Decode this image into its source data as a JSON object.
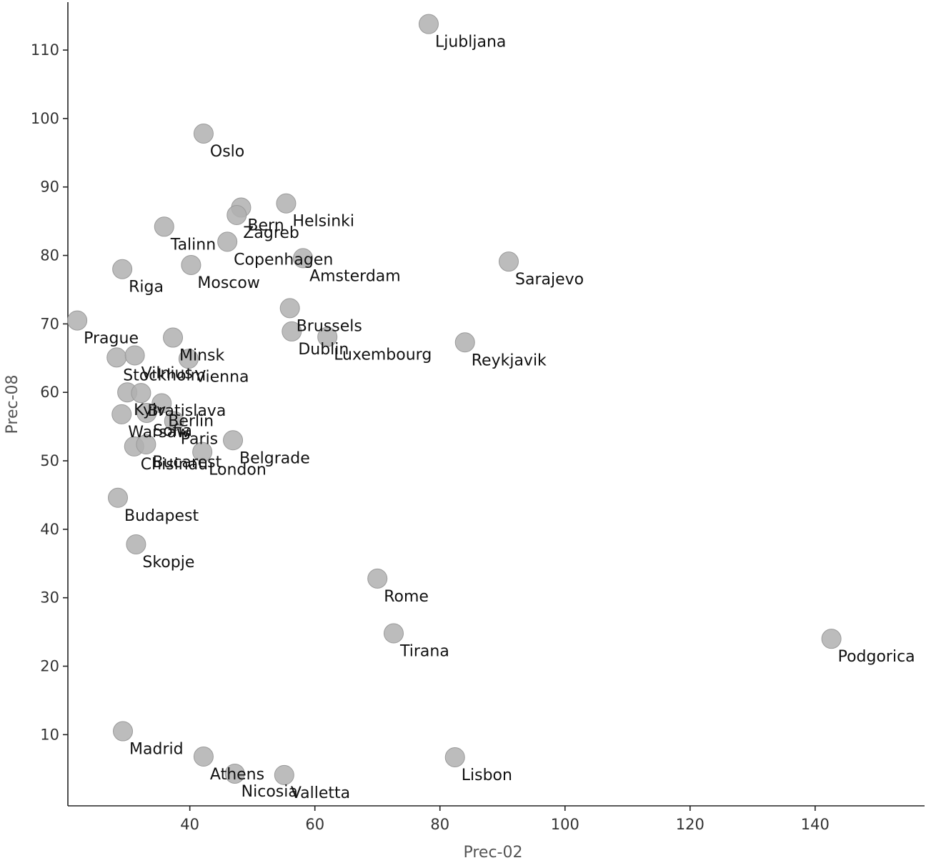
{
  "chart_data": {
    "type": "scatter",
    "xlabel": "Prec-02",
    "ylabel": "Prec-08",
    "xlim": [
      20.5,
      157.5
    ],
    "ylim": [
      -0.4,
      117
    ],
    "xticks": [
      40,
      60,
      80,
      100,
      120,
      140
    ],
    "yticks": [
      10,
      20,
      30,
      40,
      50,
      60,
      70,
      80,
      90,
      100,
      110
    ],
    "grid": false,
    "legend": "none",
    "colors": {
      "point": "#b0b0b0",
      "axis": "#222222",
      "text": "#111111"
    },
    "points": [
      {
        "label": "Ljubljana",
        "x": 78.2,
        "y": 113.8
      },
      {
        "label": "Oslo",
        "x": 42.2,
        "y": 97.8
      },
      {
        "label": "Bern",
        "x": 48.2,
        "y": 87.0
      },
      {
        "label": "Helsinki",
        "x": 55.4,
        "y": 87.6
      },
      {
        "label": "Zagreb",
        "x": 47.5,
        "y": 85.9
      },
      {
        "label": "Talinn",
        "x": 35.9,
        "y": 84.2
      },
      {
        "label": "Copenhagen",
        "x": 46.0,
        "y": 82.0
      },
      {
        "label": "Amsterdam",
        "x": 58.1,
        "y": 79.6
      },
      {
        "label": "Sarajevo",
        "x": 91.0,
        "y": 79.1
      },
      {
        "label": "Riga",
        "x": 29.2,
        "y": 78.0
      },
      {
        "label": "Moscow",
        "x": 40.2,
        "y": 78.6
      },
      {
        "label": "Brussels",
        "x": 56.0,
        "y": 72.3
      },
      {
        "label": "Prague",
        "x": 22.0,
        "y": 70.5
      },
      {
        "label": "Dublin",
        "x": 56.3,
        "y": 68.9
      },
      {
        "label": "Luxembourg",
        "x": 62.0,
        "y": 68.1
      },
      {
        "label": "Reykjavik",
        "x": 84.0,
        "y": 67.3
      },
      {
        "label": "Minsk",
        "x": 37.3,
        "y": 68.0
      },
      {
        "label": "Stockholm",
        "x": 28.3,
        "y": 65.1
      },
      {
        "label": "Vilnius",
        "x": 31.2,
        "y": 65.4
      },
      {
        "label": "Vienna",
        "x": 39.8,
        "y": 64.9
      },
      {
        "label": "Kyiv",
        "x": 30.0,
        "y": 60.0
      },
      {
        "label": "Bratislava",
        "x": 32.2,
        "y": 59.9
      },
      {
        "label": "Berlin",
        "x": 35.5,
        "y": 58.4
      },
      {
        "label": "Warsaw",
        "x": 29.1,
        "y": 56.8
      },
      {
        "label": "Sofia",
        "x": 33.1,
        "y": 57.0
      },
      {
        "label": "Paris",
        "x": 37.5,
        "y": 55.8
      },
      {
        "label": "Belgrade",
        "x": 46.9,
        "y": 53.0
      },
      {
        "label": "Chisinau",
        "x": 31.1,
        "y": 52.1
      },
      {
        "label": "Bucarest",
        "x": 33.0,
        "y": 52.4
      },
      {
        "label": "London",
        "x": 42.0,
        "y": 51.3
      },
      {
        "label": "Budapest",
        "x": 28.5,
        "y": 44.6
      },
      {
        "label": "Skopje",
        "x": 31.4,
        "y": 37.8
      },
      {
        "label": "Rome",
        "x": 70.0,
        "y": 32.8
      },
      {
        "label": "Tirana",
        "x": 72.6,
        "y": 24.8
      },
      {
        "label": "Podgorica",
        "x": 142.6,
        "y": 24.0
      },
      {
        "label": "Madrid",
        "x": 29.3,
        "y": 10.5
      },
      {
        "label": "Athens",
        "x": 42.2,
        "y": 6.8
      },
      {
        "label": "Lisbon",
        "x": 82.4,
        "y": 6.7
      },
      {
        "label": "Nicosia",
        "x": 47.2,
        "y": 4.3
      },
      {
        "label": "Valletta",
        "x": 55.1,
        "y": 4.1
      }
    ]
  }
}
